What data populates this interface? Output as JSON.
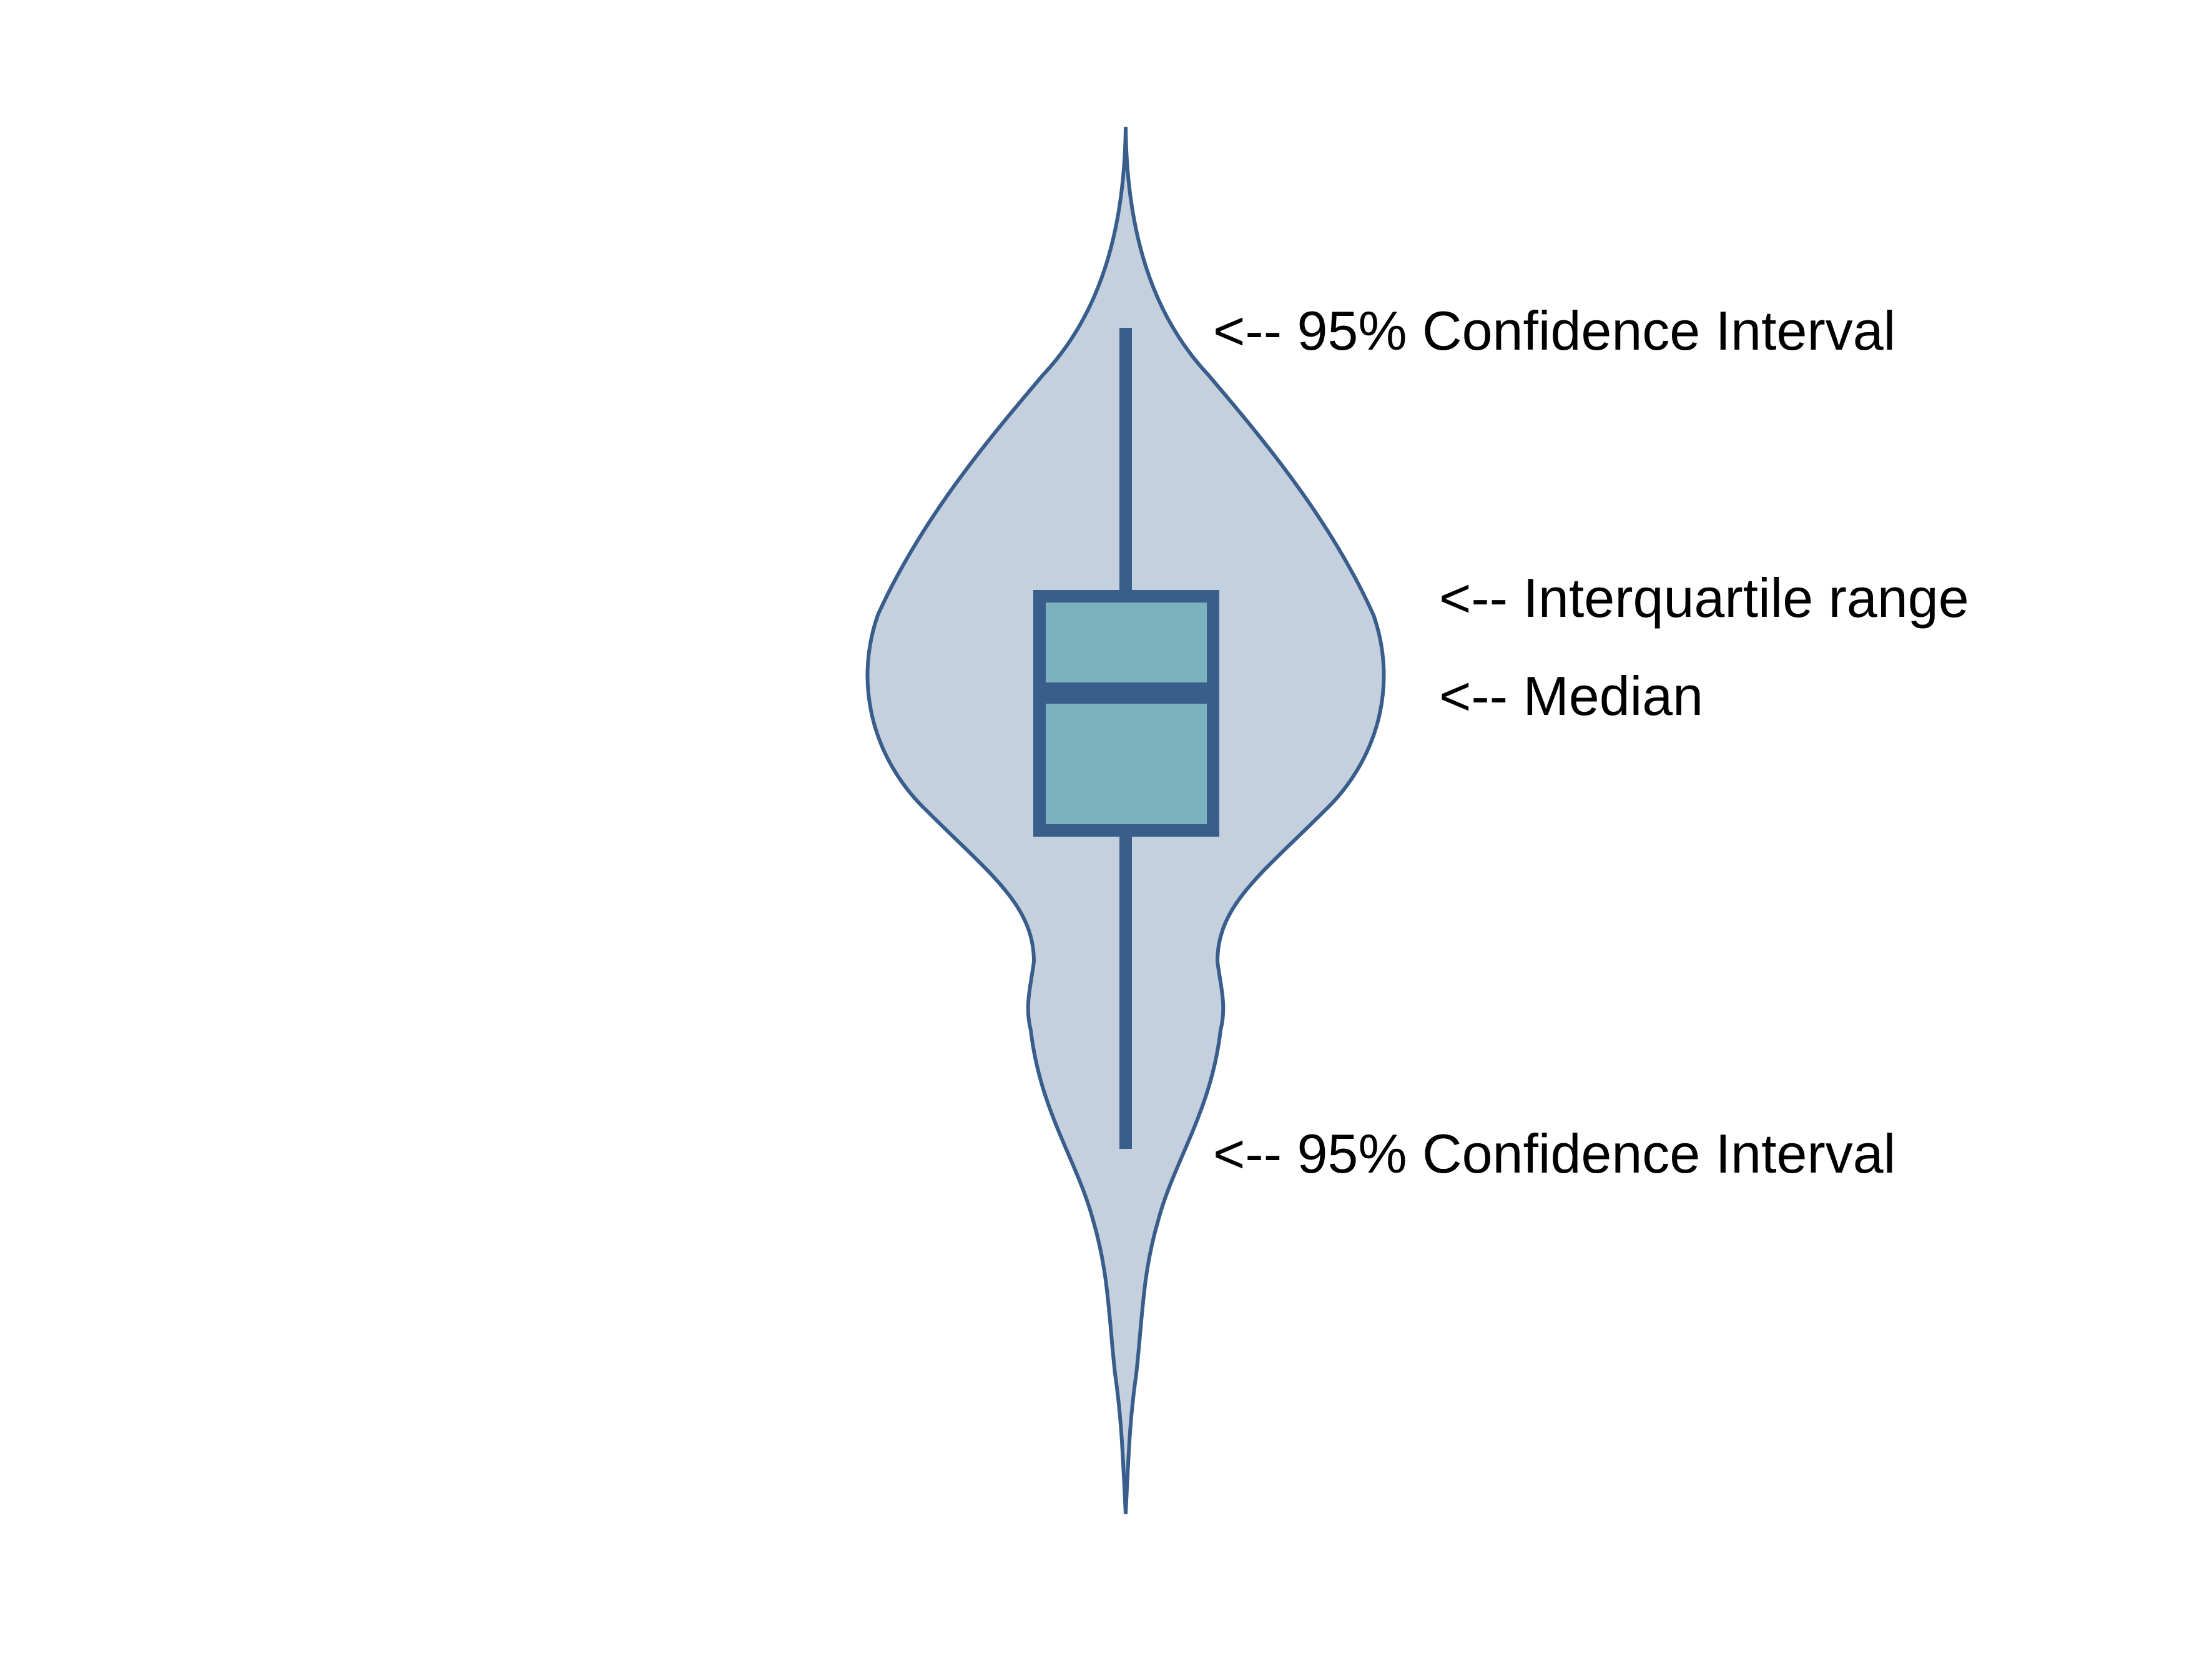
{
  "annotations": {
    "upper_ci": "<-- 95% Confidence Interval",
    "iqr": "<-- Interquartile range",
    "median": "<-- Median",
    "lower_ci": "<-- 95% Confidence Interval"
  },
  "colors": {
    "violin_fill": "#c4d0de",
    "violin_stroke": "#3a5e8c",
    "whisker": "#3a5e8c",
    "box_fill": "#7ab2bd",
    "box_stroke": "#3a5e8c",
    "median_line": "#3a5e8c",
    "text": "#000000"
  }
}
